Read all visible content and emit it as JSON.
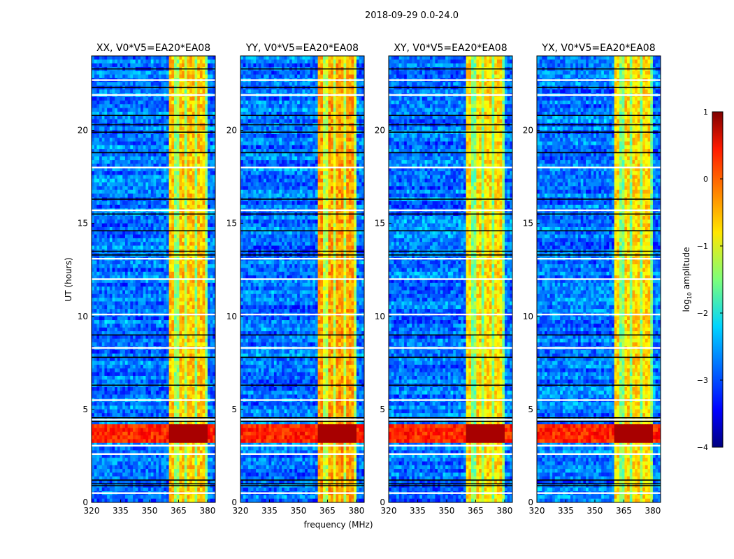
{
  "chart_data": {
    "type": "heatmap",
    "title": "2018-09-29 0.0-24.0",
    "xlabel": "frequency (MHz)",
    "ylabel": "UT (hours)",
    "xlim": [
      320,
      384
    ],
    "ylim": [
      0,
      24
    ],
    "xticks": [
      "320",
      "335",
      "350",
      "365",
      "380"
    ],
    "xtick_values": [
      320,
      335,
      350,
      365,
      380
    ],
    "yticks": [
      "0",
      "5",
      "10",
      "15",
      "20"
    ],
    "ytick_values": [
      0,
      5,
      10,
      15,
      20
    ],
    "panels": [
      {
        "title": "XX, V0*V5=EA20*EA08",
        "band_level": -0.6
      },
      {
        "title": "YY, V0*V5=EA20*EA08",
        "band_level": -0.4
      },
      {
        "title": "XY, V0*V5=EA20*EA08",
        "band_level": -0.7
      },
      {
        "title": "YX, V0*V5=EA20*EA08",
        "band_level": -0.7
      }
    ],
    "background_level": -2.8,
    "rfi_band_mhz": [
      360,
      380
    ],
    "rfi_subband_edges_mhz": [
      364,
      369,
      374,
      379
    ],
    "hot_interval_hours": [
      3.2,
      4.2
    ],
    "flagged_hours_black": [
      0.9,
      1.0,
      1.2,
      4.35,
      4.55,
      6.3,
      7.8,
      9.0,
      13.3,
      13.5,
      14.6,
      15.5,
      16.3,
      18.8,
      19.9,
      20.3,
      20.8,
      22.3,
      23.3
    ],
    "gap_hours_white": [
      0.5,
      2.6,
      3.05,
      4.45,
      5.5,
      8.3,
      10.1,
      12.0,
      13.1,
      15.7,
      18.0,
      21.9,
      22.7
    ],
    "colorbar": {
      "label": "log10 amplitude",
      "label_main": "log",
      "label_sub": "10",
      "label_rest": " amplitude",
      "range": [
        -4,
        1
      ],
      "ticks": [
        "1",
        "0",
        "−1",
        "−2",
        "−3",
        "−4"
      ],
      "tick_values": [
        1,
        0,
        -1,
        -2,
        -3,
        -4
      ],
      "colormap": "jet"
    }
  }
}
